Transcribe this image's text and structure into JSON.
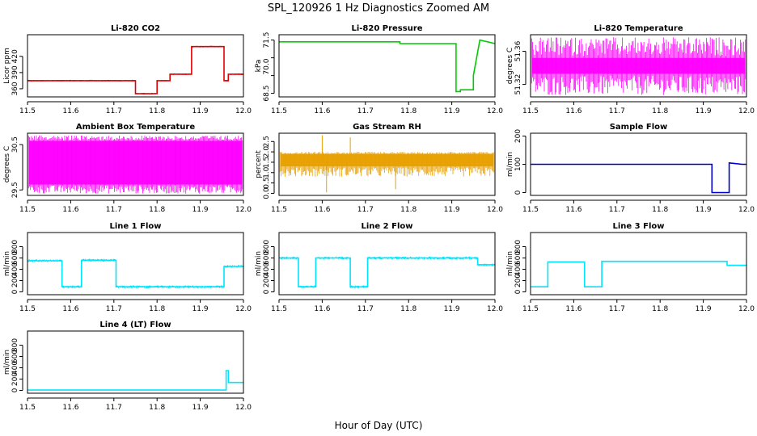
{
  "figure": {
    "title": "SPL_120926  1 Hz Diagnostics Zoomed AM",
    "xlabel": "Hour of Day (UTC)"
  },
  "chart_data": [
    {
      "type": "line",
      "title": "Li-820 CO2",
      "ylabel": "Licor ppm",
      "color": "#e00000",
      "xlim": [
        11.5,
        12.0
      ],
      "ylim": [
        345,
        460
      ],
      "xticks": [
        11.5,
        11.6,
        11.7,
        11.8,
        11.9,
        12.0
      ],
      "xtick_labels": [
        "11.5",
        "11.6",
        "11.7",
        "11.8",
        "11.9",
        "12.0"
      ],
      "yticks": [
        360,
        390,
        420
      ],
      "ytick_labels": [
        "360",
        "390",
        "420"
      ],
      "noise": 1.5,
      "series": [
        {
          "x": [
            11.5,
            11.75,
            11.75,
            11.8,
            11.8,
            11.83,
            11.83,
            11.88,
            11.88,
            11.955,
            11.955,
            11.965,
            11.965,
            12.0
          ],
          "y": [
            375,
            375,
            351,
            351,
            375,
            375,
            387,
            387,
            438,
            438,
            375,
            375,
            387,
            387
          ]
        }
      ]
    },
    {
      "type": "line",
      "title": "Li-820 Pressure",
      "ylabel": "kPa",
      "color": "#00cc00",
      "xlim": [
        11.5,
        12.0
      ],
      "ylim": [
        68.3,
        71.8
      ],
      "xticks": [
        11.5,
        11.6,
        11.7,
        11.8,
        11.9,
        12.0
      ],
      "xtick_labels": [
        "11.5",
        "11.6",
        "11.7",
        "11.8",
        "11.9",
        "12.0"
      ],
      "yticks": [
        68.5,
        69.5,
        70.5,
        71.5
      ],
      "ytick_labels": [
        "68.5",
        "70.0",
        "71.5"
      ],
      "ytick_label_values": [
        68.5,
        70.0,
        71.5
      ],
      "noise": 0.02,
      "series": [
        {
          "x": [
            11.5,
            11.78,
            11.78,
            11.91,
            11.91,
            11.92,
            11.92,
            11.95,
            11.95,
            11.965,
            11.965,
            12.0
          ],
          "y": [
            71.4,
            71.4,
            71.3,
            71.3,
            68.6,
            68.6,
            68.7,
            68.7,
            69.5,
            71.5,
            71.5,
            71.3
          ]
        }
      ]
    },
    {
      "type": "line",
      "title": "Li-820 Temperature",
      "ylabel": "degrees C",
      "color": "#ff00ff",
      "xlim": [
        11.5,
        12.0
      ],
      "ylim": [
        51.305,
        51.38
      ],
      "xticks": [
        11.5,
        11.6,
        11.7,
        11.8,
        11.9,
        12.0
      ],
      "xtick_labels": [
        "11.5",
        "11.6",
        "11.7",
        "11.8",
        "11.9",
        "12.0"
      ],
      "yticks": [
        51.32,
        51.36
      ],
      "ytick_labels": [
        "51.32",
        "51.36"
      ],
      "band": [
        51.333,
        51.352
      ],
      "spikes": [
        51.307,
        51.377
      ],
      "series": [
        {
          "x": [
            11.5,
            12.0
          ],
          "y": [
            51.342,
            51.342
          ]
        }
      ]
    },
    {
      "type": "line",
      "title": "Ambient Box Temperature",
      "ylabel": "degrees C",
      "color": "#ff00ff",
      "xlim": [
        11.5,
        12.0
      ],
      "ylim": [
        29.38,
        30.75
      ],
      "xticks": [
        11.5,
        11.6,
        11.7,
        11.8,
        11.9,
        12.0
      ],
      "xtick_labels": [
        "11.5",
        "11.6",
        "11.7",
        "11.8",
        "11.9",
        "12.0"
      ],
      "yticks": [
        29.5,
        30.5
      ],
      "ytick_labels": [
        "29.5",
        "30.5"
      ],
      "band": [
        29.62,
        30.58
      ],
      "spikes": [
        29.42,
        30.7
      ],
      "series": [
        {
          "x": [
            11.5,
            12.0
          ],
          "y": [
            30.1,
            30.1
          ]
        }
      ]
    },
    {
      "type": "line",
      "title": "Gas Stream RH",
      "ylabel": "percent",
      "color": "#e8a000",
      "xlim": [
        11.5,
        12.0
      ],
      "ylim": [
        -0.1,
        2.9
      ],
      "xticks": [
        11.5,
        11.6,
        11.7,
        11.8,
        11.9,
        12.0
      ],
      "xtick_labels": [
        "11.5",
        "11.6",
        "11.7",
        "11.8",
        "11.9",
        "12.0"
      ],
      "yticks": [
        0.0,
        0.5,
        1.0,
        1.5,
        2.0,
        2.5
      ],
      "ytick_labels": [
        "0.0",
        "0.5",
        "1.0",
        "1.5",
        "2.0",
        "2.5"
      ],
      "band": [
        1.3,
        1.9
      ],
      "spikes": [
        0.8,
        2.0
      ],
      "outliers": [
        {
          "x": 11.6,
          "y": 2.8
        },
        {
          "x": 11.61,
          "y": 0.05
        },
        {
          "x": 11.665,
          "y": 2.7
        },
        {
          "x": 11.77,
          "y": 0.2
        }
      ],
      "series": [
        {
          "x": [
            11.5,
            12.0
          ],
          "y": [
            1.6,
            1.6
          ]
        }
      ]
    },
    {
      "type": "line",
      "title": "Sample Flow",
      "ylabel": "ml/min",
      "color": "#0000cc",
      "xlim": [
        11.5,
        12.0
      ],
      "ylim": [
        -10,
        210
      ],
      "xticks": [
        11.5,
        11.6,
        11.7,
        11.8,
        11.9,
        12.0
      ],
      "xtick_labels": [
        "11.5",
        "11.6",
        "11.7",
        "11.8",
        "11.9",
        "12.0"
      ],
      "yticks": [
        0,
        100,
        200
      ],
      "ytick_labels": [
        "0",
        "100",
        "200"
      ],
      "noise": 1.5,
      "series": [
        {
          "x": [
            11.5,
            11.92,
            11.92,
            11.96,
            11.96,
            11.99,
            12.0
          ],
          "y": [
            100,
            100,
            0,
            0,
            105,
            100,
            100
          ]
        }
      ]
    },
    {
      "type": "line",
      "title": "Line 1 Flow",
      "ylabel": "ml/min",
      "color": "#00e5ff",
      "xlim": [
        11.5,
        12.0
      ],
      "ylim": [
        -50,
        1050
      ],
      "xticks": [
        11.5,
        11.6,
        11.7,
        11.8,
        11.9,
        12.0
      ],
      "xtick_labels": [
        "11.5",
        "11.6",
        "11.7",
        "11.8",
        "11.9",
        "12.0"
      ],
      "yticks": [
        0,
        200,
        400,
        600,
        800
      ],
      "ytick_labels": [
        "0",
        "200",
        "400",
        "600",
        "800"
      ],
      "noise": 25,
      "series": [
        {
          "x": [
            11.5,
            11.58,
            11.58,
            11.625,
            11.625,
            11.705,
            11.705,
            11.955,
            11.955,
            12.0
          ],
          "y": [
            550,
            550,
            90,
            90,
            560,
            560,
            90,
            90,
            450,
            450
          ]
        }
      ]
    },
    {
      "type": "line",
      "title": "Line 2 Flow",
      "ylabel": "ml/min",
      "color": "#00e5ff",
      "xlim": [
        11.5,
        12.0
      ],
      "ylim": [
        -50,
        1050
      ],
      "xticks": [
        11.5,
        11.6,
        11.7,
        11.8,
        11.9,
        12.0
      ],
      "xtick_labels": [
        "11.5",
        "11.6",
        "11.7",
        "11.8",
        "11.9",
        "12.0"
      ],
      "yticks": [
        0,
        200,
        400,
        600,
        800
      ],
      "ytick_labels": [
        "0",
        "200",
        "400",
        "600",
        "800"
      ],
      "noise": 25,
      "series": [
        {
          "x": [
            11.5,
            11.545,
            11.545,
            11.585,
            11.585,
            11.665,
            11.665,
            11.705,
            11.705,
            11.96,
            11.96,
            12.0
          ],
          "y": [
            600,
            600,
            90,
            90,
            600,
            600,
            90,
            90,
            600,
            600,
            480,
            480
          ]
        }
      ]
    },
    {
      "type": "line",
      "title": "Line 3 Flow",
      "ylabel": "ml/min",
      "color": "#00e5ff",
      "xlim": [
        11.5,
        12.0
      ],
      "ylim": [
        -50,
        1050
      ],
      "xticks": [
        11.5,
        11.6,
        11.7,
        11.8,
        11.9,
        12.0
      ],
      "xtick_labels": [
        "11.5",
        "11.6",
        "11.7",
        "11.8",
        "11.9",
        "12.0"
      ],
      "yticks": [
        0,
        200,
        400,
        600,
        800
      ],
      "ytick_labels": [
        "0",
        "200",
        "400",
        "600",
        "800"
      ],
      "noise": 8,
      "series": [
        {
          "x": [
            11.5,
            11.54,
            11.54,
            11.625,
            11.625,
            11.665,
            11.665,
            11.955,
            11.955,
            12.0
          ],
          "y": [
            90,
            90,
            530,
            530,
            90,
            90,
            540,
            540,
            470,
            470
          ]
        }
      ]
    },
    {
      "type": "line",
      "title": "Line 4 (LT) Flow",
      "ylabel": "ml/min",
      "color": "#00e5ff",
      "xlim": [
        11.5,
        12.0
      ],
      "ylim": [
        -50,
        1050
      ],
      "xticks": [
        11.5,
        11.6,
        11.7,
        11.8,
        11.9,
        12.0
      ],
      "xtick_labels": [
        "11.5",
        "11.6",
        "11.7",
        "11.8",
        "11.9",
        "12.0"
      ],
      "yticks": [
        0,
        200,
        400,
        600,
        800
      ],
      "ytick_labels": [
        "0",
        "200",
        "400",
        "600",
        "800"
      ],
      "noise": 0,
      "series": [
        {
          "x": [
            11.5,
            11.96,
            11.96,
            11.965,
            11.965,
            12.0
          ],
          "y": [
            5,
            5,
            350,
            350,
            140,
            140
          ]
        }
      ]
    }
  ]
}
